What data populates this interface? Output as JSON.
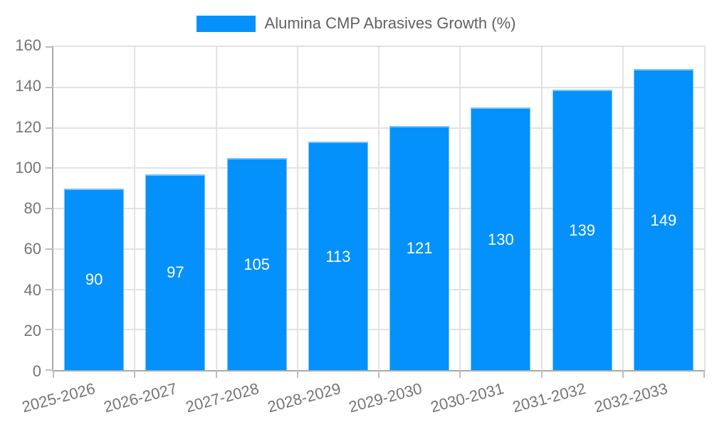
{
  "legend": {
    "label": "Alumina CMP Abrasives Growth (%)"
  },
  "colors": {
    "bar": "#0591fb",
    "bar_border": "#7cc4fa",
    "grid": "#e2e2e2",
    "axis": "#a9a9a9",
    "tick": "#bdbdbd",
    "tick_text": "#757575",
    "legend_text": "#616161",
    "bar_label_text": "#ffffff"
  },
  "chart_data": {
    "type": "bar",
    "title": "",
    "xlabel": "",
    "ylabel": "",
    "legend_entries": [
      "Alumina CMP Abrasives Growth (%)"
    ],
    "legend_position": "top-center",
    "categories": [
      "2025-2026",
      "2026-2027",
      "2027-2028",
      "2028-2029",
      "2029-2030",
      "2030-2031",
      "2031-2032",
      "2032-2033"
    ],
    "values": [
      90,
      97,
      105,
      113,
      121,
      130,
      139,
      149
    ],
    "bar_value_labels": [
      "90",
      "97",
      "105",
      "113",
      "121",
      "130",
      "139",
      "149"
    ],
    "ylim": [
      0,
      160
    ],
    "yticks": [
      0,
      20,
      40,
      60,
      80,
      100,
      120,
      140,
      160
    ],
    "grid": true,
    "x_label_rotation_deg": -15
  }
}
